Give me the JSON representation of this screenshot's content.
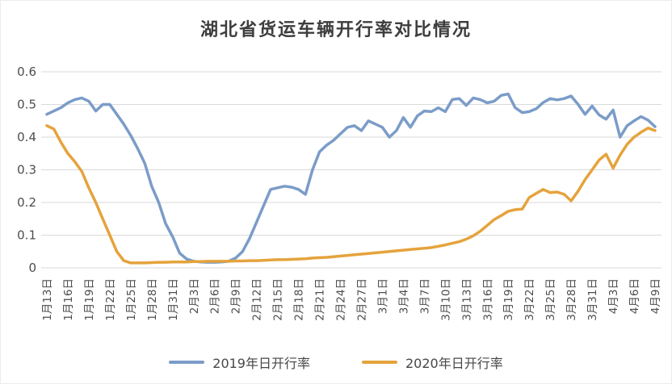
{
  "title": "湖北省货运车辆开行率对比情况",
  "colors": {
    "series2019": "#7B9CC8",
    "series2020": "#E5A33C",
    "gridline": "#DADADA",
    "title_text": "#3D3D3D",
    "axis_text": "#4D4D4D"
  },
  "legend": {
    "item_2019": "2019年日开行率",
    "item_2020": "2020年日开行率"
  },
  "chart_data": {
    "type": "line",
    "title": "湖北省货运车辆开行率对比情况",
    "xlabel": "",
    "ylabel": "",
    "ylim": [
      0,
      0.6
    ],
    "yticks": [
      0,
      0.1,
      0.2,
      0.3,
      0.4,
      0.5,
      0.6
    ],
    "grid": "horizontal",
    "legend_position": "bottom",
    "x_tick_interval": 3,
    "dates": [
      "1月13日",
      "1月14日",
      "1月15日",
      "1月16日",
      "1月17日",
      "1月18日",
      "1月19日",
      "1月20日",
      "1月21日",
      "1月22日",
      "1月23日",
      "1月24日",
      "1月25日",
      "1月26日",
      "1月27日",
      "1月28日",
      "1月29日",
      "1月30日",
      "1月31日",
      "2月1日",
      "2月2日",
      "2月3日",
      "2月4日",
      "2月5日",
      "2月6日",
      "2月7日",
      "2月8日",
      "2月9日",
      "2月10日",
      "2月11日",
      "2月12日",
      "2月13日",
      "2月14日",
      "2月15日",
      "2月16日",
      "2月17日",
      "2月18日",
      "2月19日",
      "2月20日",
      "2月21日",
      "2月22日",
      "2月23日",
      "2月24日",
      "2月25日",
      "2月26日",
      "2月27日",
      "2月28日",
      "2月29日",
      "3月1日",
      "3月2日",
      "3月3日",
      "3月4日",
      "3月5日",
      "3月6日",
      "3月7日",
      "3月8日",
      "3月9日",
      "3月10日",
      "3月11日",
      "3月12日",
      "3月13日",
      "3月14日",
      "3月15日",
      "3月16日",
      "3月17日",
      "3月18日",
      "3月19日",
      "3月20日",
      "3月21日",
      "3月22日",
      "3月23日",
      "3月24日",
      "3月25日",
      "3月26日",
      "3月27日",
      "3月28日",
      "3月29日",
      "3月30日",
      "3月31日",
      "4月1日",
      "4月2日",
      "4月3日",
      "4月4日",
      "4月5日",
      "4月6日",
      "4月7日",
      "4月8日",
      "4月9日"
    ],
    "series": [
      {
        "name": "2019年日开行率",
        "color_key": "series2019",
        "values": [
          0.47,
          0.48,
          0.49,
          0.505,
          0.515,
          0.52,
          0.51,
          0.48,
          0.5,
          0.5,
          0.47,
          0.44,
          0.405,
          0.365,
          0.32,
          0.25,
          0.2,
          0.135,
          0.095,
          0.045,
          0.027,
          0.02,
          0.018,
          0.017,
          0.017,
          0.018,
          0.02,
          0.03,
          0.05,
          0.09,
          0.14,
          0.19,
          0.24,
          0.245,
          0.25,
          0.247,
          0.24,
          0.225,
          0.3,
          0.355,
          0.375,
          0.39,
          0.41,
          0.43,
          0.435,
          0.42,
          0.45,
          0.44,
          0.43,
          0.4,
          0.42,
          0.46,
          0.43,
          0.465,
          0.48,
          0.478,
          0.49,
          0.478,
          0.515,
          0.518,
          0.497,
          0.52,
          0.515,
          0.505,
          0.51,
          0.528,
          0.532,
          0.49,
          0.475,
          0.478,
          0.487,
          0.506,
          0.518,
          0.514,
          0.518,
          0.526,
          0.5,
          0.47,
          0.495,
          0.468,
          0.455,
          0.483,
          0.4,
          0.435,
          0.45,
          0.463,
          0.452,
          0.432
        ]
      },
      {
        "name": "2020年日开行率",
        "color_key": "series2020",
        "values": [
          0.435,
          0.425,
          0.385,
          0.35,
          0.325,
          0.295,
          0.245,
          0.2,
          0.15,
          0.1,
          0.05,
          0.022,
          0.015,
          0.015,
          0.015,
          0.016,
          0.017,
          0.017,
          0.018,
          0.018,
          0.018,
          0.019,
          0.019,
          0.02,
          0.02,
          0.02,
          0.02,
          0.021,
          0.021,
          0.022,
          0.022,
          0.023,
          0.024,
          0.025,
          0.025,
          0.026,
          0.027,
          0.028,
          0.03,
          0.031,
          0.032,
          0.034,
          0.036,
          0.038,
          0.04,
          0.042,
          0.044,
          0.046,
          0.048,
          0.05,
          0.052,
          0.054,
          0.056,
          0.058,
          0.06,
          0.062,
          0.066,
          0.07,
          0.075,
          0.08,
          0.088,
          0.098,
          0.112,
          0.13,
          0.148,
          0.16,
          0.173,
          0.178,
          0.18,
          0.215,
          0.228,
          0.24,
          0.23,
          0.232,
          0.225,
          0.205,
          0.235,
          0.27,
          0.3,
          0.33,
          0.348,
          0.305,
          0.345,
          0.378,
          0.4,
          0.415,
          0.428,
          0.42
        ]
      }
    ]
  }
}
